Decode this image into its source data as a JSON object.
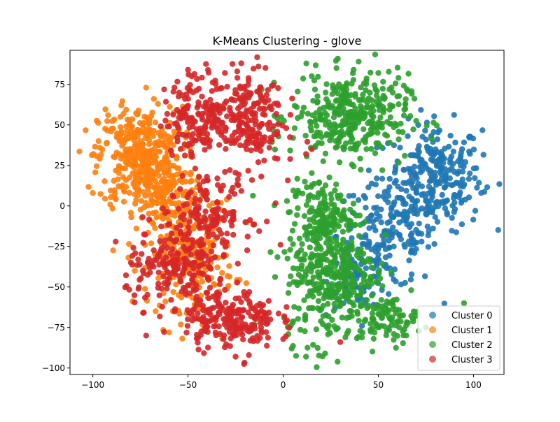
{
  "chart_data": {
    "type": "scatter",
    "title": "K-Means Clustering - glove",
    "xlabel": "",
    "ylabel": "",
    "xlim": [
      -112,
      116
    ],
    "ylim": [
      -104,
      96
    ],
    "xticks": [
      -100,
      -50,
      0,
      50,
      100
    ],
    "yticks": [
      -100,
      -75,
      -50,
      -25,
      0,
      25,
      50,
      75
    ],
    "grid": false,
    "legend_position": "lower-right",
    "series": [
      {
        "name": "Cluster 0",
        "color": "#1f77b4",
        "regions": [
          {
            "cx": 80,
            "cy": 18,
            "rx": 22,
            "ry": 30,
            "n": 260
          },
          {
            "cx": 55,
            "cy": -18,
            "rx": 24,
            "ry": 30,
            "n": 170
          },
          {
            "cx": 40,
            "cy": -45,
            "rx": 14,
            "ry": 16,
            "n": 70
          }
        ],
        "points": [
          [
            104,
            8
          ],
          [
            98,
            20
          ],
          [
            94,
            35
          ],
          [
            90,
            2
          ],
          [
            82,
            28
          ],
          [
            75,
            -5
          ],
          [
            68,
            15
          ],
          [
            60,
            5
          ],
          [
            45,
            -50
          ],
          [
            50,
            -30
          ]
        ]
      },
      {
        "name": "Cluster 1",
        "color": "#ff7f0e",
        "regions": [
          {
            "cx": -75,
            "cy": 30,
            "rx": 20,
            "ry": 28,
            "n": 380
          },
          {
            "cx": -48,
            "cy": -30,
            "rx": 20,
            "ry": 30,
            "n": 230
          },
          {
            "cx": -60,
            "cy": 5,
            "rx": 18,
            "ry": 18,
            "n": 120
          }
        ],
        "points": [
          [
            -100,
            8
          ],
          [
            -97,
            40
          ],
          [
            -92,
            56
          ],
          [
            -85,
            62
          ],
          [
            -72,
            73
          ],
          [
            -78,
            -40
          ],
          [
            -55,
            -55
          ],
          [
            -67,
            -65
          ],
          [
            -60,
            -78
          ],
          [
            -32,
            -82
          ]
        ]
      },
      {
        "name": "Cluster 2",
        "color": "#2ca02c",
        "regions": [
          {
            "cx": 35,
            "cy": 55,
            "rx": 28,
            "ry": 24,
            "n": 350
          },
          {
            "cx": 25,
            "cy": -40,
            "rx": 22,
            "ry": 40,
            "n": 380
          },
          {
            "cx": 55,
            "cy": -70,
            "rx": 14,
            "ry": 12,
            "n": 90
          },
          {
            "cx": 20,
            "cy": -5,
            "rx": 15,
            "ry": 20,
            "n": 120
          }
        ],
        "points": [
          [
            28,
            85
          ],
          [
            37,
            84
          ],
          [
            50,
            82
          ],
          [
            65,
            72
          ],
          [
            15,
            80
          ],
          [
            12,
            -93
          ],
          [
            22,
            -91
          ],
          [
            75,
            -75
          ],
          [
            95,
            -60
          ],
          [
            5,
            -72
          ]
        ]
      },
      {
        "name": "Cluster 3",
        "color": "#d62728",
        "regions": [
          {
            "cx": -20,
            "cy": 55,
            "rx": 18,
            "ry": 28,
            "n": 220
          },
          {
            "cx": -45,
            "cy": 55,
            "rx": 16,
            "ry": 22,
            "n": 150
          },
          {
            "cx": -28,
            "cy": -70,
            "rx": 22,
            "ry": 16,
            "n": 220
          },
          {
            "cx": -55,
            "cy": -40,
            "rx": 25,
            "ry": 20,
            "n": 180
          },
          {
            "cx": -40,
            "cy": -5,
            "rx": 22,
            "ry": 20,
            "n": 150
          }
        ],
        "points": [
          [
            -22,
            88
          ],
          [
            -13,
            86
          ],
          [
            -50,
            84
          ],
          [
            -48,
            80
          ],
          [
            -88,
            -22
          ],
          [
            -80,
            -35
          ],
          [
            -72,
            -80
          ],
          [
            -25,
            -93
          ],
          [
            -18,
            -92
          ],
          [
            -10,
            28
          ],
          [
            15,
            35
          ],
          [
            12,
            32
          ],
          [
            30,
            -84
          ]
        ]
      }
    ],
    "legend": [
      {
        "label": "Cluster 0",
        "color": "#1f77b4"
      },
      {
        "label": "Cluster 1",
        "color": "#ff7f0e"
      },
      {
        "label": "Cluster 2",
        "color": "#2ca02c"
      },
      {
        "label": "Cluster 3",
        "color": "#d62728"
      }
    ]
  }
}
